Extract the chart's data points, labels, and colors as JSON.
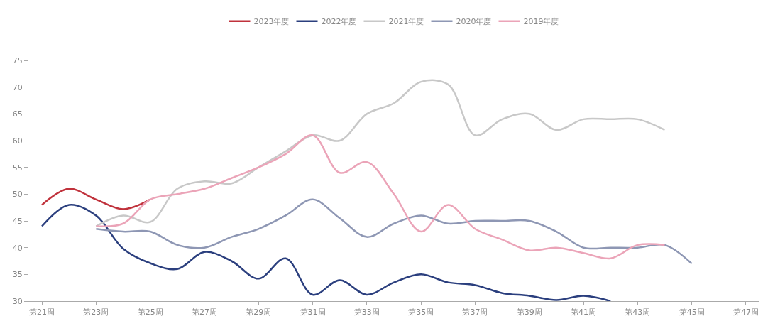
{
  "chart_data": {
    "type": "line",
    "categories": [
      "第21周",
      null,
      "第23周",
      null,
      "第25周",
      null,
      "第27周",
      null,
      "第29周",
      null,
      "第31周",
      null,
      "第33周",
      null,
      "第35周",
      null,
      "第37周",
      null,
      "第39周",
      null,
      "第41周",
      null,
      "第43周",
      null,
      "第45周",
      null,
      "第47周"
    ],
    "series": [
      {
        "name": "2023年度",
        "color": "#c0323c",
        "values": [
          48,
          51,
          49,
          47.2,
          49,
          null,
          null,
          null,
          null,
          null,
          null,
          null,
          null,
          null,
          null,
          null,
          null,
          null,
          null,
          null,
          null,
          null,
          null,
          null,
          null,
          null,
          null
        ]
      },
      {
        "name": "2022年度",
        "color": "#2b3f7e",
        "values": [
          44,
          48,
          46,
          39.8,
          37.1,
          36,
          39.2,
          37.5,
          34.2,
          38,
          31.2,
          33.9,
          31.2,
          33.5,
          35,
          33.5,
          33,
          31.5,
          31,
          30.2,
          31,
          30,
          null,
          null,
          null,
          null,
          null
        ]
      },
      {
        "name": "2021年度",
        "color": "#c8c8c8",
        "values": [
          null,
          null,
          44,
          46,
          44.8,
          51,
          52.4,
          52,
          55,
          58,
          61,
          60,
          65,
          67,
          71,
          70.5,
          61,
          64,
          65,
          62,
          64,
          64,
          64,
          62,
          null,
          null,
          null
        ]
      },
      {
        "name": "2020年度",
        "color": "#8e97b4",
        "values": [
          null,
          null,
          43.5,
          43,
          43,
          40.5,
          40,
          42,
          43.5,
          46,
          49,
          45.5,
          42,
          44.5,
          46,
          44.5,
          45,
          45,
          45,
          43,
          40,
          40,
          40,
          40.5,
          37,
          null,
          null
        ]
      },
      {
        "name": "2019年度",
        "color": "#eba4b8",
        "values": [
          null,
          null,
          44,
          44.5,
          49,
          50,
          51,
          53,
          55,
          57.5,
          61,
          54,
          56,
          50,
          43,
          48,
          43.5,
          41.5,
          39.5,
          40,
          39,
          38,
          40.5,
          40.5,
          null,
          null,
          null
        ]
      }
    ],
    "ylim": [
      30,
      75
    ],
    "yticks": [
      30,
      35,
      40,
      45,
      50,
      55,
      60,
      65,
      70,
      75
    ],
    "legend": "top",
    "marker": "none",
    "line_style": "solid"
  }
}
